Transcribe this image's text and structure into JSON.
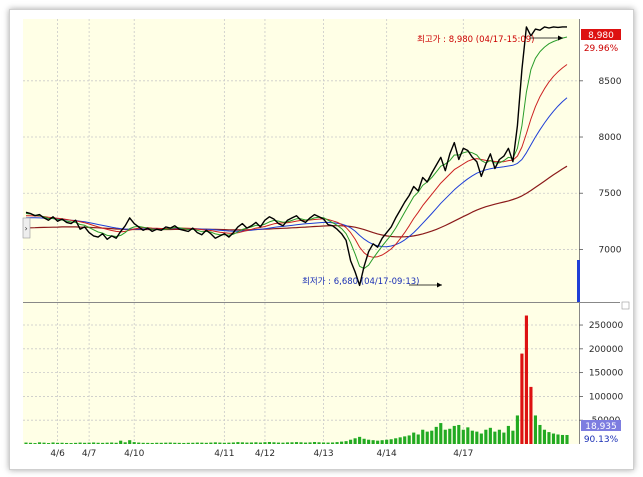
{
  "chart_data": {
    "type": "line",
    "price_panel": {
      "ylim": [
        6550,
        9050
      ],
      "y_ticks": [
        7000,
        7500,
        8000,
        8500
      ],
      "y_tick_labels": [
        "7000",
        "7500",
        "8000",
        "8500"
      ],
      "last_price_label": "8,980",
      "last_change_label": "29.96%",
      "high_annotation": "최고가 : 8,980 (04/17-15:09)",
      "low_annotation": "최저가 : 6,680 (04/17-09:13)",
      "high_value": 8980,
      "low_value": 6680,
      "x": [
        0,
        1,
        2,
        3,
        4,
        5,
        6,
        7,
        8,
        9,
        10,
        11,
        12,
        13,
        14,
        15,
        16,
        17,
        18,
        19,
        20,
        21,
        22,
        23,
        24,
        25,
        26,
        27,
        28,
        29,
        30,
        31,
        32,
        33,
        34,
        35,
        36,
        37,
        38,
        39,
        40,
        41,
        42,
        43,
        44,
        45,
        46,
        47,
        48,
        49,
        50,
        51,
        52,
        53,
        54,
        55,
        56,
        57,
        58,
        59,
        60,
        61,
        62,
        63,
        64,
        65,
        66,
        67,
        68,
        69,
        70,
        71,
        72,
        73,
        74,
        75,
        76,
        77,
        78,
        79,
        80,
        81,
        82,
        83,
        84,
        85,
        86,
        87,
        88,
        89,
        90,
        91,
        92,
        93,
        94,
        95,
        96,
        97,
        98,
        99,
        100,
        101,
        102,
        103,
        104,
        105,
        106,
        107,
        108,
        109,
        110,
        111,
        112,
        113,
        114,
        115,
        116,
        117,
        118,
        119,
        120
      ],
      "series": [
        {
          "values": [
            7330,
            7320,
            7300,
            7310,
            7280,
            7260,
            7290,
            7250,
            7270,
            7240,
            7230,
            7260,
            7180,
            7200,
            7150,
            7120,
            7110,
            7140,
            7090,
            7120,
            7100,
            7160,
            7210,
            7280,
            7230,
            7200,
            7170,
            7190,
            7160,
            7180,
            7170,
            7200,
            7190,
            7210,
            7180,
            7170,
            7160,
            7190,
            7150,
            7130,
            7170,
            7140,
            7100,
            7120,
            7140,
            7110,
            7150,
            7200,
            7230,
            7190,
            7210,
            7240,
            7200,
            7260,
            7290,
            7270,
            7230,
            7210,
            7260,
            7280,
            7300,
            7260,
            7240,
            7280,
            7310,
            7290,
            7270,
            7220,
            7210,
            7180,
            7140,
            7080,
            6900,
            6800,
            6680,
            6850,
            6980,
            7050,
            7020,
            7100,
            7150,
            7200,
            7280,
            7350,
            7420,
            7480,
            7560,
            7520,
            7640,
            7600,
            7680,
            7750,
            7820,
            7700,
            7850,
            7950,
            7800,
            7900,
            7880,
            7820,
            7780,
            7650,
            7760,
            7850,
            7720,
            7800,
            7830,
            7900,
            7780,
            8100,
            8600,
            8980,
            8900,
            8960,
            8950,
            8980,
            8970,
            8980,
            8975,
            8980,
            8980
          ],
          "color": "#000000",
          "width": 1.4
        },
        {
          "values": [
            7320,
            7315,
            7305,
            7300,
            7290,
            7275,
            7275,
            7265,
            7262,
            7252,
            7245,
            7240,
            7222,
            7215,
            7195,
            7175,
            7155,
            7145,
            7125,
            7120,
            7115,
            7125,
            7150,
            7185,
            7200,
            7205,
            7198,
            7190,
            7180,
            7178,
            7175,
            7180,
            7185,
            7195,
            7192,
            7185,
            7178,
            7180,
            7170,
            7158,
            7160,
            7155,
            7138,
            7130,
            7132,
            7127,
            7135,
            7155,
            7178,
            7190,
            7200,
            7215,
            7212,
            7225,
            7245,
            7258,
            7252,
            7242,
            7245,
            7258,
            7272,
            7272,
            7262,
            7266,
            7280,
            7286,
            7282,
            7260,
            7238,
            7215,
            7185,
            7140,
            7060,
            6960,
            6850,
            6830,
            6860,
            6920,
            6975,
            7030,
            7080,
            7130,
            7190,
            7260,
            7330,
            7400,
            7470,
            7510,
            7570,
            7600,
            7640,
            7690,
            7740,
            7760,
            7790,
            7840,
            7840,
            7860,
            7870,
            7860,
            7840,
            7790,
            7770,
            7790,
            7770,
            7770,
            7790,
            7820,
            7810,
            7900,
            8100,
            8400,
            8600,
            8700,
            8760,
            8800,
            8830,
            8850,
            8865,
            8880,
            8890
          ],
          "color": "#2a9d2a",
          "width": 1
        },
        {
          "values": [
            7300,
            7300,
            7298,
            7296,
            7292,
            7286,
            7282,
            7277,
            7272,
            7266,
            7260,
            7255,
            7246,
            7238,
            7226,
            7213,
            7200,
            7190,
            7178,
            7168,
            7160,
            7156,
            7160,
            7172,
            7182,
            7190,
            7192,
            7192,
            7190,
            7188,
            7186,
            7186,
            7187,
            7190,
            7191,
            7190,
            7188,
            7186,
            7182,
            7176,
            7172,
            7168,
            7160,
            7152,
            7148,
            7144,
            7143,
            7148,
            7158,
            7168,
            7178,
            7190,
            7196,
            7204,
            7216,
            7228,
            7234,
            7236,
            7238,
            7244,
            7252,
            7258,
            7260,
            7262,
            7266,
            7270,
            7272,
            7266,
            7255,
            7242,
            7222,
            7194,
            7150,
            7092,
            7020,
            6970,
            6940,
            6930,
            6935,
            6950,
            6975,
            7005,
            7045,
            7095,
            7150,
            7210,
            7275,
            7330,
            7390,
            7440,
            7490,
            7540,
            7590,
            7630,
            7670,
            7710,
            7735,
            7760,
            7785,
            7800,
            7808,
            7800,
            7792,
            7788,
            7782,
            7780,
            7780,
            7790,
            7795,
            7830,
            7910,
            8030,
            8160,
            8270,
            8360,
            8430,
            8490,
            8540,
            8580,
            8615,
            8645
          ],
          "color": "#cc2222",
          "width": 1
        },
        {
          "values": [
            7280,
            7281,
            7281,
            7280,
            7279,
            7276,
            7274,
            7271,
            7268,
            7264,
            7260,
            7257,
            7251,
            7246,
            7239,
            7231,
            7222,
            7214,
            7206,
            7198,
            7191,
            7185,
            7181,
            7180,
            7180,
            7181,
            7182,
            7183,
            7184,
            7184,
            7184,
            7185,
            7185,
            7186,
            7186,
            7186,
            7186,
            7185,
            7184,
            7182,
            7180,
            7178,
            7174,
            7170,
            7167,
            7164,
            7162,
            7162,
            7164,
            7167,
            7171,
            7176,
            7180,
            7184,
            7190,
            7196,
            7201,
            7205,
            7209,
            7214,
            7219,
            7224,
            7228,
            7231,
            7234,
            7237,
            7240,
            7240,
            7238,
            7233,
            7225,
            7212,
            7192,
            7163,
            7125,
            7092,
            7065,
            7045,
            7032,
            7025,
            7024,
            7030,
            7042,
            7060,
            7085,
            7115,
            7150,
            7190,
            7232,
            7275,
            7320,
            7365,
            7410,
            7450,
            7490,
            7530,
            7565,
            7598,
            7628,
            7655,
            7678,
            7695,
            7708,
            7718,
            7725,
            7730,
            7735,
            7742,
            7748,
            7765,
            7800,
            7860,
            7930,
            8000,
            8065,
            8125,
            8180,
            8230,
            8275,
            8315,
            8350
          ],
          "color": "#1f3fd6",
          "width": 1
        },
        {
          "values": [
            7190,
            7192,
            7193,
            7195,
            7196,
            7197,
            7198,
            7199,
            7200,
            7200,
            7200,
            7200,
            7199,
            7198,
            7196,
            7194,
            7192,
            7190,
            7187,
            7185,
            7182,
            7180,
            7178,
            7177,
            7177,
            7177,
            7177,
            7177,
            7177,
            7177,
            7177,
            7177,
            7177,
            7178,
            7178,
            7179,
            7179,
            7180,
            7180,
            7180,
            7180,
            7179,
            7178,
            7177,
            7176,
            7175,
            7174,
            7174,
            7174,
            7175,
            7176,
            7177,
            7179,
            7180,
            7182,
            7184,
            7186,
            7188,
            7190,
            7192,
            7194,
            7197,
            7199,
            7201,
            7204,
            7206,
            7208,
            7210,
            7211,
            7211,
            7210,
            7208,
            7204,
            7198,
            7188,
            7176,
            7163,
            7150,
            7138,
            7128,
            7120,
            7115,
            7112,
            7111,
            7112,
            7115,
            7120,
            7128,
            7138,
            7150,
            7163,
            7178,
            7195,
            7213,
            7232,
            7252,
            7272,
            7292,
            7312,
            7332,
            7350,
            7366,
            7380,
            7392,
            7402,
            7412,
            7422,
            7432,
            7444,
            7458,
            7476,
            7498,
            7524,
            7552,
            7580,
            7608,
            7636,
            7664,
            7690,
            7716,
            7740
          ],
          "color": "#8b1a1a",
          "width": 1.2
        }
      ]
    },
    "volume_panel": {
      "ylim": [
        0,
        290000
      ],
      "y_ticks": [
        50000,
        100000,
        150000,
        200000,
        250000
      ],
      "y_tick_labels": [
        "50000",
        "100000",
        "150000",
        "200000",
        "250000"
      ],
      "last_volume_label": "18,935",
      "last_volume_pct": "90.13%",
      "values": [
        3000,
        2500,
        2000,
        3500,
        2800,
        2000,
        3200,
        2500,
        2600,
        2200,
        2000,
        2400,
        3000,
        2500,
        2800,
        3200,
        2600,
        2400,
        2800,
        3100,
        2600,
        7000,
        3600,
        8000,
        4000,
        3000,
        2500,
        2400,
        2200,
        2600,
        2500,
        2800,
        3000,
        2600,
        2400,
        2200,
        2500,
        2600,
        3000,
        2800,
        2500,
        3000,
        3500,
        3000,
        2600,
        2800,
        3200,
        4000,
        3500,
        3000,
        3200,
        3600,
        3000,
        3800,
        4200,
        3600,
        3000,
        2800,
        3400,
        3600,
        4000,
        3600,
        3000,
        3400,
        4200,
        3600,
        3200,
        3000,
        3200,
        4000,
        5000,
        6000,
        9000,
        12000,
        15000,
        11000,
        9000,
        8000,
        7000,
        8000,
        9000,
        10000,
        12000,
        14000,
        16000,
        18000,
        24000,
        20000,
        30000,
        26000,
        28000,
        36000,
        44000,
        30000,
        32000,
        38000,
        40000,
        30000,
        35000,
        28000,
        26000,
        22000,
        30000,
        34000,
        26000,
        30000,
        24000,
        38000,
        28000,
        60000,
        190000,
        270000,
        120000,
        60000,
        40000,
        30000,
        25000,
        22000,
        20000,
        19000,
        18935
      ]
    },
    "x_labels": [
      "4/6",
      "4/7",
      "4/10",
      "4/11",
      "4/12",
      "4/13",
      "4/14",
      "4/17"
    ],
    "x_label_index": [
      7,
      14,
      24,
      44,
      53,
      66,
      80,
      97
    ],
    "grid": true
  },
  "colors": {
    "plot_bg": "#ffffe6",
    "last_badge": "#dd1111",
    "volume_badge": "#7d7de0",
    "volume_bar": "#22aa22",
    "volume_spike": "#dd1111"
  }
}
